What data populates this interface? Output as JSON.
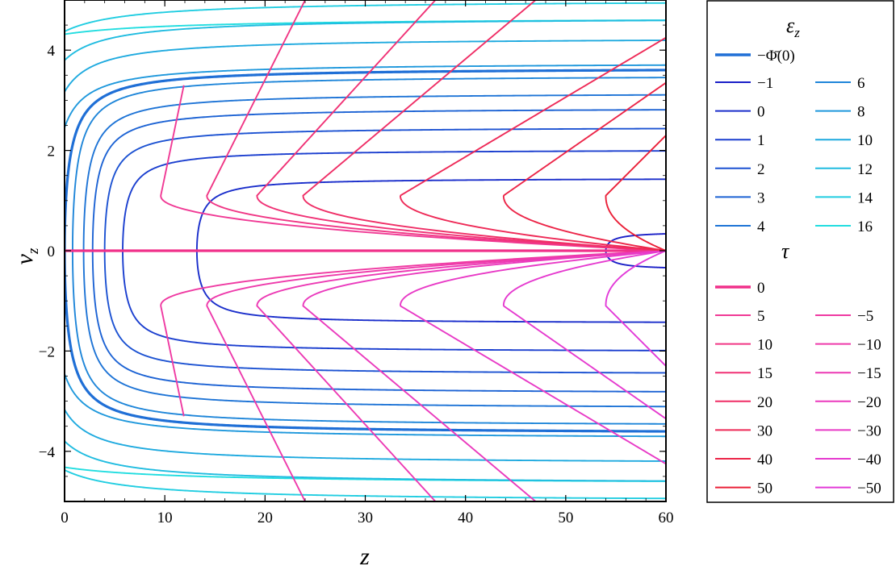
{
  "chart_data": {
    "type": "line",
    "title": "",
    "xlabel": "z",
    "ylabel": "v",
    "ylabel_sub": "z",
    "xlim": [
      0,
      60
    ],
    "ylim": [
      -5,
      5
    ],
    "x_ticks": [
      "0",
      "10",
      "20",
      "30",
      "40",
      "50",
      "60"
    ],
    "y_ticks": [
      "−4",
      "−2",
      "0",
      "2",
      "4"
    ],
    "grid": false,
    "legend_placement": "right",
    "energy_legend": {
      "title": "ε",
      "title_sub": "z",
      "special_label": "−Φ̄(0)",
      "special_color": "#1f6fd6",
      "entries": [
        {
          "label": "−1",
          "value": -1,
          "color": "#1a1fc7"
        },
        {
          "label": "0",
          "value": 0,
          "color": "#1a2ecb"
        },
        {
          "label": "1",
          "value": 1,
          "color": "#1b3fcf"
        },
        {
          "label": "2",
          "value": 2,
          "color": "#1c52d2"
        },
        {
          "label": "3",
          "value": 3,
          "color": "#1d63d4"
        },
        {
          "label": "4",
          "value": 4,
          "color": "#1e74d6"
        },
        {
          "label": "6",
          "value": 6,
          "color": "#1f86d9"
        },
        {
          "label": "8",
          "value": 8,
          "color": "#1f98dc"
        },
        {
          "label": "10",
          "value": 10,
          "color": "#1faadf"
        },
        {
          "label": "12",
          "value": 12,
          "color": "#20bce0"
        },
        {
          "label": "14",
          "value": 14,
          "color": "#21cde1"
        },
        {
          "label": "16",
          "value": 16,
          "color": "#22dde0"
        }
      ]
    },
    "tau_legend": {
      "title": "τ",
      "zero_label": "0",
      "zero_color": "#f0308a",
      "positive": [
        {
          "label": "5",
          "value": 5,
          "color": "#f03a95"
        },
        {
          "label": "10",
          "value": 10,
          "color": "#f03685"
        },
        {
          "label": "15",
          "value": 15,
          "color": "#f03276"
        },
        {
          "label": "20",
          "value": 20,
          "color": "#ef2e66"
        },
        {
          "label": "30",
          "value": 30,
          "color": "#ee2a57"
        },
        {
          "label": "40",
          "value": 40,
          "color": "#ec2548"
        },
        {
          "label": "50",
          "value": 50,
          "color": "#ea2038"
        }
      ],
      "negative": [
        {
          "label": "−5",
          "value": -5,
          "color": "#ef3aa2"
        },
        {
          "label": "−10",
          "value": -10,
          "color": "#ee3aab"
        },
        {
          "label": "−15",
          "value": -15,
          "color": "#ec3ab4"
        },
        {
          "label": "−20",
          "value": -20,
          "color": "#ea3abd"
        },
        {
          "label": "−30",
          "value": -30,
          "color": "#e83ac6"
        },
        {
          "label": "−40",
          "value": -40,
          "color": "#e53acf"
        },
        {
          "label": "−50",
          "value": -50,
          "color": "#e23ad8"
        }
      ]
    },
    "energy_curves": [
      {
        "series": "16",
        "vertex_z": -10.0,
        "v_inf": 4.65,
        "closed": false
      },
      {
        "series": "14",
        "vertex_z": -5.2,
        "v_inf": 5.0,
        "closed": false
      },
      {
        "series": "12",
        "vertex_z": -3.2,
        "v_inf": 4.65,
        "closed": false
      },
      {
        "series": "10",
        "vertex_z": -2.0,
        "v_inf": 4.25,
        "closed": false
      },
      {
        "series": "8",
        "vertex_z": -1.2,
        "v_inf": 3.75,
        "closed": false
      },
      {
        "series": "special",
        "vertex_z": 0.0,
        "v_inf": 3.65,
        "closed": false
      },
      {
        "series": "6",
        "vertex_z": 0.8,
        "v_inf": 3.5,
        "closed": false
      },
      {
        "series": "4",
        "vertex_z": 1.9,
        "v_inf": 3.15,
        "closed": false
      },
      {
        "series": "3",
        "vertex_z": 2.8,
        "v_inf": 2.85,
        "closed": false
      },
      {
        "series": "2",
        "vertex_z": 4.0,
        "v_inf": 2.47,
        "closed": false
      },
      {
        "series": "1",
        "vertex_z": 5.8,
        "v_inf": 2.02,
        "closed": false
      },
      {
        "series": "0",
        "vertex_z": 13.2,
        "v_inf": 1.45,
        "closed": false
      },
      {
        "series": "−1",
        "vertex_z": 54.0,
        "v_inf": 0.38,
        "closed": false
      }
    ],
    "tau_curves": [
      {
        "series": "5",
        "z_apex": 9.6,
        "z_end": 11.9,
        "v_end": 3.3
      },
      {
        "series": "10",
        "z_apex": 14.2,
        "z_end": 24.0,
        "v_end": 5.0
      },
      {
        "series": "15",
        "z_apex": 19.2,
        "z_end": 37.0,
        "v_end": 5.0
      },
      {
        "series": "20",
        "z_apex": 23.8,
        "z_end": 47.0,
        "v_end": 5.0
      },
      {
        "series": "30",
        "z_apex": 33.5,
        "z_end": 60.0,
        "v_end": 4.25
      },
      {
        "series": "40",
        "z_apex": 43.8,
        "z_end": 60.0,
        "v_end": 3.35
      },
      {
        "series": "50",
        "z_apex": 54.0,
        "z_end": 60.0,
        "v_end": 2.3
      }
    ]
  }
}
